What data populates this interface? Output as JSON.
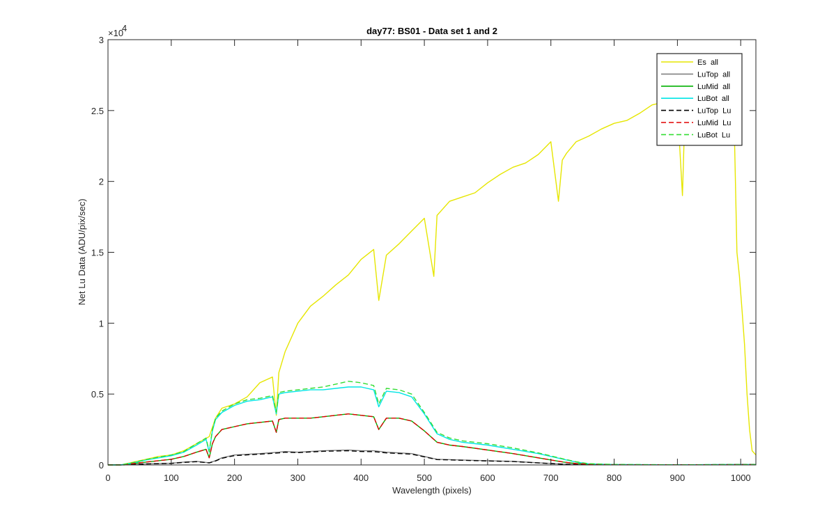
{
  "chart_data": {
    "type": "line",
    "title": "day77: BS01 - Data set 1 and 2",
    "xlabel": "Wavelength (pixels)",
    "ylabel": "Net Lu Data (ADU/pix/sec)",
    "xlim": [
      0,
      1024
    ],
    "ylim": [
      0,
      30000
    ],
    "x_ticks": [
      0,
      100,
      200,
      300,
      400,
      500,
      600,
      700,
      800,
      900,
      1000
    ],
    "x_tick_labels": [
      "0",
      "100",
      "200",
      "300",
      "400",
      "500",
      "600",
      "700",
      "800",
      "900",
      "1000"
    ],
    "y_ticks": [
      0,
      5000,
      10000,
      15000,
      20000,
      25000,
      30000
    ],
    "y_tick_labels": [
      "0",
      "0.5",
      "1",
      "1.5",
      "2",
      "2.5",
      "3"
    ],
    "y_exponent_base": "×10",
    "y_exponent_power": "4",
    "grid": false,
    "legend_position": "top-right",
    "series": [
      {
        "name": "Es  all",
        "color": "#e6e600",
        "dash": "solid",
        "x": [
          0,
          20,
          40,
          60,
          80,
          100,
          120,
          140,
          160,
          170,
          180,
          200,
          220,
          240,
          260,
          266,
          270,
          280,
          300,
          320,
          340,
          360,
          380,
          400,
          420,
          428,
          440,
          460,
          480,
          500,
          515,
          520,
          540,
          560,
          580,
          600,
          620,
          640,
          660,
          680,
          700,
          712,
          718,
          725,
          740,
          760,
          780,
          800,
          820,
          840,
          860,
          880,
          900,
          908,
          912,
          920,
          940,
          960,
          980,
          990,
          994,
          998,
          1002,
          1006,
          1010,
          1014,
          1018,
          1024
        ],
        "y": [
          0,
          0,
          200,
          400,
          600,
          700,
          1000,
          1500,
          2000,
          3300,
          4000,
          4300,
          4800,
          5800,
          6200,
          3500,
          6500,
          8000,
          10000,
          11200,
          11900,
          12700,
          13400,
          14500,
          15200,
          11600,
          14800,
          15600,
          16500,
          17400,
          13300,
          17600,
          18600,
          18900,
          19200,
          19900,
          20500,
          21000,
          21300,
          21900,
          22800,
          18600,
          21500,
          22000,
          22800,
          23200,
          23700,
          24100,
          24300,
          24800,
          25400,
          25600,
          25300,
          19000,
          25200,
          25300,
          25000,
          24800,
          24400,
          23500,
          15000,
          13300,
          11000,
          8500,
          5000,
          2500,
          1000,
          700
        ]
      },
      {
        "name": "LuTop  all",
        "color": "#808080",
        "dash": "solid",
        "x": [
          0,
          20,
          40,
          60,
          80,
          100,
          120,
          140,
          160,
          170,
          180,
          200,
          240,
          270,
          280,
          300,
          340,
          380,
          400,
          420,
          440,
          480,
          500,
          520,
          560,
          600,
          640,
          680,
          720,
          760,
          800,
          900,
          1000,
          1024
        ],
        "y": [
          0,
          0,
          30,
          80,
          100,
          120,
          200,
          250,
          150,
          300,
          500,
          700,
          800,
          900,
          950,
          900,
          1000,
          1050,
          1000,
          1000,
          900,
          800,
          600,
          400,
          350,
          300,
          250,
          150,
          60,
          20,
          10,
          10,
          30,
          30
        ]
      },
      {
        "name": "LuMid  all",
        "color": "#00b000",
        "dash": "solid",
        "x": [
          0,
          20,
          40,
          60,
          80,
          100,
          120,
          140,
          155,
          160,
          165,
          170,
          180,
          200,
          220,
          240,
          260,
          266,
          270,
          280,
          300,
          320,
          340,
          360,
          380,
          400,
          420,
          428,
          440,
          460,
          480,
          500,
          520,
          540,
          560,
          600,
          640,
          680,
          720,
          740,
          760,
          800,
          900,
          1000,
          1024
        ],
        "y": [
          0,
          0,
          100,
          200,
          300,
          400,
          600,
          900,
          1100,
          500,
          1500,
          2000,
          2500,
          2700,
          2900,
          3000,
          3100,
          2300,
          3200,
          3300,
          3300,
          3300,
          3400,
          3500,
          3600,
          3500,
          3400,
          2500,
          3300,
          3300,
          3100,
          2400,
          1600,
          1400,
          1300,
          1050,
          800,
          500,
          200,
          100,
          50,
          20,
          10,
          20,
          20
        ]
      },
      {
        "name": "LuBot  all",
        "color": "#00e5e5",
        "dash": "solid",
        "x": [
          0,
          20,
          40,
          60,
          80,
          100,
          120,
          140,
          155,
          160,
          165,
          170,
          180,
          200,
          220,
          240,
          260,
          266,
          270,
          280,
          300,
          320,
          340,
          360,
          380,
          400,
          420,
          428,
          440,
          460,
          480,
          500,
          520,
          540,
          560,
          600,
          640,
          680,
          720,
          740,
          760,
          800,
          900,
          1000,
          1024
        ],
        "y": [
          0,
          0,
          150,
          350,
          500,
          650,
          900,
          1400,
          1800,
          900,
          2400,
          3200,
          3700,
          4200,
          4500,
          4600,
          4800,
          3600,
          5000,
          5100,
          5200,
          5300,
          5300,
          5400,
          5500,
          5500,
          5300,
          4100,
          5200,
          5100,
          4800,
          3600,
          2200,
          1800,
          1600,
          1400,
          1100,
          800,
          400,
          200,
          80,
          30,
          10,
          30,
          30
        ]
      },
      {
        "name": "LuTop  Lu",
        "color": "#000000",
        "dash": "dashed",
        "x": [
          0,
          20,
          40,
          60,
          80,
          100,
          120,
          140,
          160,
          170,
          180,
          200,
          240,
          270,
          280,
          300,
          340,
          380,
          400,
          420,
          440,
          480,
          500,
          520,
          560,
          600,
          640,
          680,
          720,
          760,
          800,
          900,
          1000,
          1024
        ],
        "y": [
          0,
          0,
          30,
          70,
          90,
          110,
          180,
          230,
          140,
          280,
          470,
          660,
          760,
          850,
          900,
          870,
          960,
          1000,
          950,
          940,
          850,
          760,
          570,
          380,
          330,
          280,
          240,
          140,
          50,
          15,
          8,
          8,
          25,
          25
        ]
      },
      {
        "name": "LuMid  Lu",
        "color": "#e00000",
        "dash": "dashed",
        "x": [
          0,
          20,
          40,
          60,
          80,
          100,
          120,
          140,
          155,
          160,
          165,
          170,
          180,
          200,
          220,
          240,
          260,
          266,
          270,
          280,
          300,
          320,
          340,
          360,
          380,
          400,
          420,
          428,
          440,
          460,
          480,
          500,
          520,
          540,
          560,
          600,
          640,
          680,
          720,
          740,
          760,
          800,
          900,
          1000,
          1024
        ],
        "y": [
          0,
          0,
          100,
          200,
          300,
          400,
          600,
          900,
          1100,
          500,
          1500,
          2000,
          2500,
          2700,
          2900,
          3000,
          3100,
          2300,
          3200,
          3300,
          3300,
          3300,
          3400,
          3500,
          3600,
          3500,
          3400,
          2500,
          3300,
          3300,
          3100,
          2400,
          1600,
          1400,
          1300,
          1050,
          800,
          500,
          200,
          100,
          50,
          20,
          10,
          20,
          20
        ]
      },
      {
        "name": "LuBot  Lu",
        "color": "#33dd33",
        "dash": "dashed",
        "x": [
          0,
          20,
          40,
          60,
          80,
          100,
          120,
          140,
          155,
          160,
          165,
          170,
          180,
          200,
          220,
          240,
          260,
          266,
          270,
          280,
          300,
          320,
          340,
          360,
          380,
          400,
          420,
          428,
          440,
          460,
          480,
          500,
          520,
          540,
          560,
          600,
          640,
          680,
          720,
          740,
          760,
          800,
          900,
          1000,
          1024
        ],
        "y": [
          0,
          0,
          170,
          380,
          550,
          700,
          950,
          1500,
          1900,
          950,
          2500,
          3300,
          3800,
          4300,
          4600,
          4700,
          4900,
          3700,
          5100,
          5200,
          5300,
          5400,
          5500,
          5700,
          5900,
          5800,
          5600,
          4300,
          5400,
          5300,
          5000,
          3700,
          2300,
          1900,
          1700,
          1500,
          1200,
          850,
          420,
          220,
          90,
          35,
          10,
          30,
          30
        ]
      }
    ]
  }
}
